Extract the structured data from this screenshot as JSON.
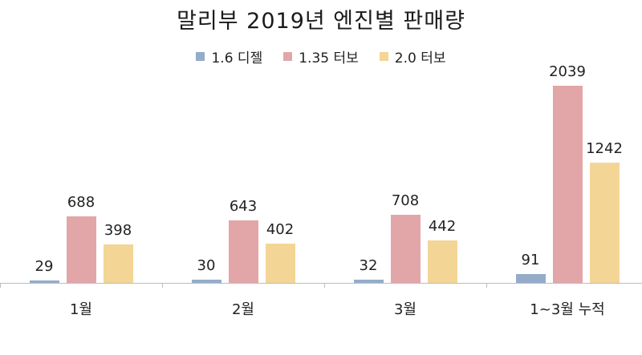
{
  "title": "말리부 2019년 엔진별 판매량",
  "legend": [
    {
      "label": "1.6 디젤",
      "color": "#94acc9"
    },
    {
      "label": "1.35 터보",
      "color": "#e2a6a8"
    },
    {
      "label": "2.0 터보",
      "color": "#f3d595"
    }
  ],
  "chart_data": {
    "type": "bar",
    "title": "말리부 2019년 엔진별 판매량",
    "xlabel": "",
    "ylabel": "",
    "categories": [
      "1월",
      "2월",
      "3월",
      "1~3월 누적"
    ],
    "series": [
      {
        "name": "1.6 디젤",
        "color": "#94acc9",
        "values": [
          29,
          30,
          32,
          91
        ]
      },
      {
        "name": "1.35 터보",
        "color": "#e2a6a8",
        "values": [
          688,
          643,
          708,
          2039
        ]
      },
      {
        "name": "2.0 터보",
        "color": "#f3d595",
        "values": [
          398,
          402,
          442,
          1242
        ]
      }
    ],
    "ylim": [
      0,
      2039
    ],
    "grid": false,
    "legend_position": "top",
    "data_labels": true
  }
}
